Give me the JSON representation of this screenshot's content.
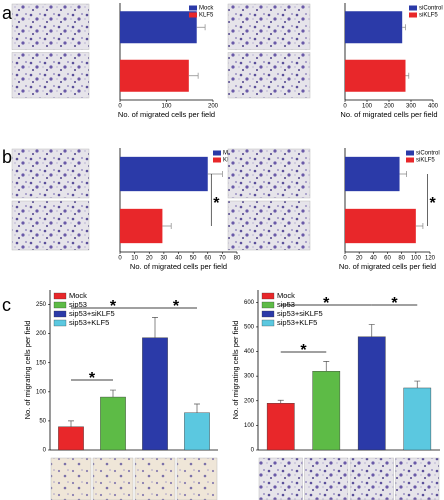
{
  "panel_labels": [
    "a",
    "b",
    "c"
  ],
  "chart_data": [
    {
      "type": "barh",
      "xlabel": "No. of migrated cells per field",
      "xlim": [
        0,
        200
      ],
      "xticks": [
        0,
        100,
        200
      ],
      "series": [
        {
          "name": "Mock",
          "color": "#2b3aa8",
          "values": [
            165
          ],
          "errors": [
            18
          ]
        },
        {
          "name": "KLF5",
          "color": "#e8272a",
          "values": [
            148
          ],
          "errors": [
            20
          ]
        }
      ]
    },
    {
      "type": "barh",
      "xlabel": "No. of migrated cells per field",
      "xlim": [
        0,
        400
      ],
      "xticks": [
        0,
        100,
        200,
        300,
        400
      ],
      "series": [
        {
          "name": "siControl",
          "color": "#2b3aa8",
          "values": [
            260
          ],
          "errors": [
            15
          ]
        },
        {
          "name": "siKLF5",
          "color": "#e8272a",
          "values": [
            275
          ],
          "errors": [
            15
          ]
        }
      ]
    },
    {
      "type": "barh",
      "xlabel": "No. of migrated cells per field",
      "xlim": [
        0,
        80
      ],
      "xticks": [
        0,
        10,
        20,
        30,
        40,
        50,
        60,
        70,
        80
      ],
      "annotations": [
        "*"
      ],
      "series": [
        {
          "name": "Mock",
          "color": "#2b3aa8",
          "values": [
            60
          ],
          "errors": [
            10
          ]
        },
        {
          "name": "KLF5",
          "color": "#e8272a",
          "values": [
            29
          ],
          "errors": [
            6
          ]
        }
      ]
    },
    {
      "type": "barh",
      "xlabel": "No. of migrated cells per field",
      "xlim": [
        0,
        120
      ],
      "xticks": [
        0,
        20,
        40,
        60,
        80,
        100,
        120
      ],
      "annotations": [
        "*"
      ],
      "series": [
        {
          "name": "siControl",
          "color": "#2b3aa8",
          "values": [
            77
          ],
          "errors": [
            10
          ]
        },
        {
          "name": "siKLF5",
          "color": "#e8272a",
          "values": [
            100
          ],
          "errors": [
            10
          ]
        }
      ]
    },
    {
      "type": "bar",
      "ylabel": "No. of migrating cells per field",
      "ylim": [
        0,
        275
      ],
      "yticks": [
        0,
        50,
        100,
        150,
        200,
        250
      ],
      "annotations": [
        "*",
        "*",
        "*"
      ],
      "series": [
        {
          "name": "Mock",
          "color": "#e8272a",
          "values": [
            40
          ],
          "errors": [
            10
          ]
        },
        {
          "name": "sip53",
          "color": "#5dbb46",
          "values": [
            91
          ],
          "errors": [
            12
          ]
        },
        {
          "name": "sip53+siKLF5",
          "color": "#2b3aa8",
          "values": [
            193
          ],
          "errors": [
            35
          ]
        },
        {
          "name": "sip53+KLF5",
          "color": "#5bc8e0",
          "values": [
            64
          ],
          "errors": [
            15
          ]
        }
      ]
    },
    {
      "type": "bar",
      "ylabel": "No. of migrating cells per field",
      "ylim": [
        0,
        650
      ],
      "yticks": [
        0,
        100,
        200,
        300,
        400,
        500,
        600
      ],
      "annotations": [
        "*",
        "*",
        "*"
      ],
      "series": [
        {
          "name": "Mock",
          "color": "#e8272a",
          "values": [
            190
          ],
          "errors": [
            12
          ]
        },
        {
          "name": "sip53",
          "color": "#5dbb46",
          "values": [
            320
          ],
          "errors": [
            40
          ]
        },
        {
          "name": "sip53+siKLF5",
          "color": "#2b3aa8",
          "values": [
            460
          ],
          "errors": [
            50
          ]
        },
        {
          "name": "sip53+KLF5",
          "color": "#5bc8e0",
          "values": [
            252
          ],
          "errors": [
            28
          ]
        }
      ]
    }
  ]
}
